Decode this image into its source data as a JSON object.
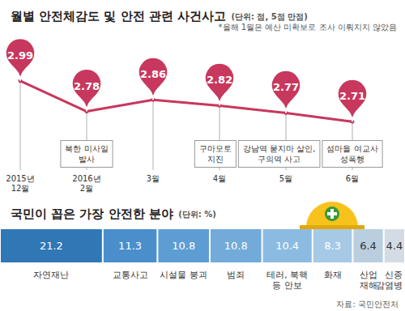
{
  "chart_data": [
    {
      "type": "line",
      "title": "월별 안전체감도 및 안전 관련 사건사고",
      "subtitle": "(단위: 점, 5점 만점)",
      "note": "*올해 1월은 예산 미확보로 조사 이뤄지지 않았음",
      "categories": [
        "2015년\n12월",
        "2016년\n2월",
        "3월",
        "4월",
        "5월",
        "6월"
      ],
      "values": [
        2.99,
        2.78,
        2.86,
        2.82,
        2.77,
        2.71
      ],
      "annotations": [
        null,
        "북한 미사일\n발사",
        null,
        "구마모토\n지진",
        "강남역 묻지마 살인,\n구의역 사고",
        "섬마을 여교사\n성폭행"
      ],
      "color": "#c8375d",
      "marker": "pin",
      "ylim": [
        2.6,
        3.0
      ],
      "yticks": [
        2.6,
        3.0
      ],
      "grid": false,
      "tick_labels": "x",
      "data_labels": true
    },
    {
      "type": "bar",
      "orientation": "horizontal",
      "stacked": true,
      "title": "국민이 꼽은 가장 안전한 분야",
      "subtitle": "(단위: %)",
      "categories": [
        "자연재난",
        "교통사고",
        "시설물 붕괴",
        "범죄",
        "테러, 북핵\n등 안보",
        "화재",
        "산업\n재해",
        "신종\n감염병"
      ],
      "values": [
        21.2,
        11.3,
        10.8,
        10.8,
        10.4,
        8.3,
        6.4,
        4.4
      ],
      "colors": [
        "#2f77b5",
        "#4a8fcb",
        "#5d9dd3",
        "#72aad9",
        "#8cbbe2",
        "#a6c9e6",
        "#b9cfe0",
        "#d3dce4"
      ],
      "xlim": [
        0,
        83.6
      ],
      "grid": false,
      "tick_labels": false,
      "data_labels": true,
      "source": "자료: 국민안전처"
    }
  ]
}
